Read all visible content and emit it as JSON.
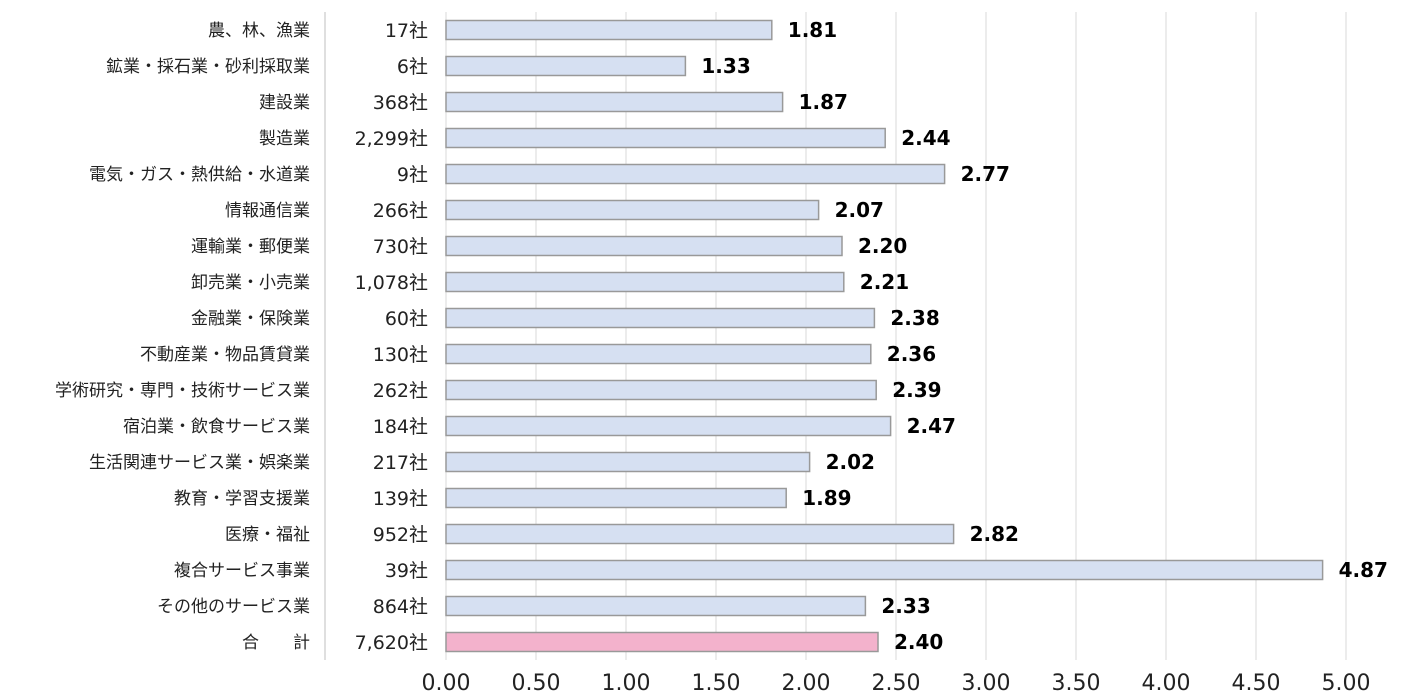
{
  "chart_data": {
    "type": "bar",
    "orientation": "horizontal",
    "title": "",
    "xlabel": "",
    "ylabel": "",
    "xlim": [
      0,
      5
    ],
    "tick_step": 0.5,
    "tick_labels": [
      "0.00",
      "0.50",
      "1.00",
      "1.50",
      "2.00",
      "2.50",
      "3.00",
      "3.50",
      "4.00",
      "4.50",
      "5.00"
    ],
    "grid": "vertical",
    "bar_color": "#d6e0f2",
    "bar_border_color": "#999999",
    "highlight_color": "#f3b2cc",
    "categories": [
      "農、林、漁業",
      "鉱業・採石業・砂利採取業",
      "建設業",
      "製造業",
      "電気・ガス・熱供給・水道業",
      "情報通信業",
      "運輸業・郵便業",
      "卸売業・小売業",
      "金融業・保険業",
      "不動産業・物品賃貸業",
      "学術研究・専門・技術サービス業",
      "宿泊業・飲食サービス業",
      "生活関連サービス業・娯楽業",
      "教育・学習支援業",
      "医療・福祉",
      "複合サービス事業",
      "その他のサービス業",
      "合　　計"
    ],
    "counts": [
      "17社",
      "6社",
      "368社",
      "2,299社",
      "9社",
      "266社",
      "730社",
      "1,078社",
      "60社",
      "130社",
      "262社",
      "184社",
      "217社",
      "139社",
      "952社",
      "39社",
      "864社",
      "7,620社"
    ],
    "values": [
      1.81,
      1.33,
      1.87,
      2.44,
      2.77,
      2.07,
      2.2,
      2.21,
      2.38,
      2.36,
      2.39,
      2.47,
      2.02,
      1.89,
      2.82,
      4.87,
      2.33,
      2.4
    ],
    "value_labels": [
      "1.81",
      "1.33",
      "1.87",
      "2.44",
      "2.77",
      "2.07",
      "2.20",
      "2.21",
      "2.38",
      "2.36",
      "2.39",
      "2.47",
      "2.02",
      "1.89",
      "2.82",
      "4.87",
      "2.33",
      "2.40"
    ],
    "highlight_index": 17
  }
}
